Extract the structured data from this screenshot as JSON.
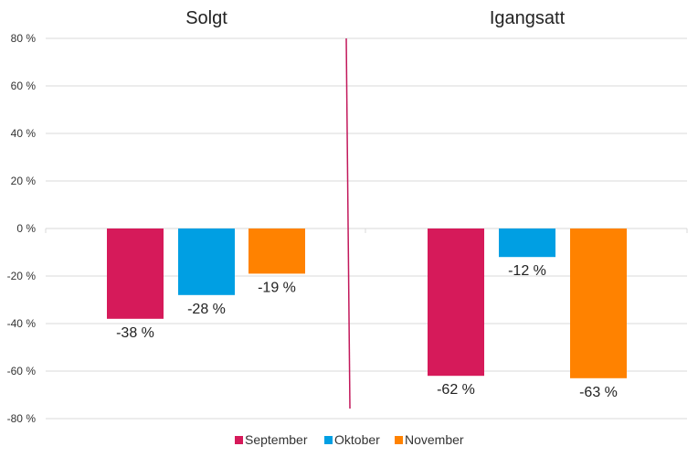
{
  "chart_data": {
    "type": "bar",
    "panels": [
      {
        "title": "Solgt",
        "values": [
          -38,
          -28,
          -19
        ],
        "labels": [
          "-38 %",
          "-28 %",
          "-19 %"
        ]
      },
      {
        "title": "Igangsatt",
        "values": [
          -62,
          -12,
          -63
        ],
        "labels": [
          "-62 %",
          "-12 %",
          "-63 %"
        ]
      }
    ],
    "series": [
      {
        "name": "September",
        "color": "#D61A5A"
      },
      {
        "name": "Oktober",
        "color": "#009FE3"
      },
      {
        "name": "November",
        "color": "#FF8200"
      }
    ],
    "ylim": [
      -80,
      80
    ],
    "yticks": [
      80,
      60,
      40,
      20,
      0,
      -20,
      -40,
      -60,
      -80
    ],
    "ytick_labels": [
      "80 %",
      "60 %",
      "40 %",
      "20 %",
      "0 %",
      "-20 %",
      "-40 %",
      "-60 %",
      "-80 %"
    ],
    "grid": true,
    "legend_position": "bottom",
    "divider_color": "#C2185B",
    "grid_color": "#D9D9D9"
  }
}
